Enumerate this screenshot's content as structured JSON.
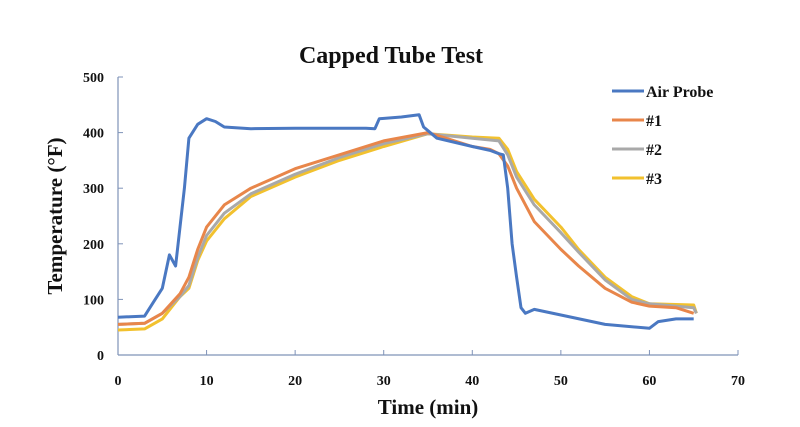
{
  "chart_data": {
    "type": "line",
    "title": "Capped Tube Test",
    "xlabel": "Time (min)",
    "ylabel": "Temperature (°F)",
    "xlim": [
      0,
      70
    ],
    "ylim": [
      0,
      500
    ],
    "xticks": [
      0,
      10,
      20,
      30,
      40,
      50,
      60,
      70
    ],
    "yticks": [
      0,
      100,
      200,
      300,
      400,
      500
    ],
    "grid": false,
    "legend_position": "top-right",
    "series": [
      {
        "name": "Air Probe",
        "color": "#4a78c2",
        "points": [
          [
            0,
            68
          ],
          [
            3,
            70
          ],
          [
            4,
            95
          ],
          [
            5,
            120
          ],
          [
            5.8,
            180
          ],
          [
            6.5,
            160
          ],
          [
            7,
            230
          ],
          [
            7.5,
            300
          ],
          [
            8,
            390
          ],
          [
            9,
            415
          ],
          [
            10,
            425
          ],
          [
            11,
            420
          ],
          [
            12,
            410
          ],
          [
            15,
            407
          ],
          [
            20,
            408
          ],
          [
            25,
            408
          ],
          [
            28,
            408
          ],
          [
            29,
            407
          ],
          [
            29.5,
            425
          ],
          [
            32,
            428
          ],
          [
            34,
            432
          ],
          [
            34.5,
            410
          ],
          [
            36,
            390
          ],
          [
            40,
            375
          ],
          [
            42,
            368
          ],
          [
            43,
            362
          ],
          [
            43.5,
            360
          ],
          [
            44,
            300
          ],
          [
            44.5,
            200
          ],
          [
            45,
            140
          ],
          [
            45.5,
            85
          ],
          [
            46,
            75
          ],
          [
            47,
            82
          ],
          [
            50,
            72
          ],
          [
            55,
            55
          ],
          [
            60,
            48
          ],
          [
            61,
            60
          ],
          [
            63,
            65
          ],
          [
            65,
            65
          ]
        ]
      },
      {
        "name": "#1",
        "color": "#e8864a",
        "points": [
          [
            0,
            55
          ],
          [
            3,
            57
          ],
          [
            5,
            75
          ],
          [
            7,
            110
          ],
          [
            8,
            140
          ],
          [
            9,
            190
          ],
          [
            10,
            230
          ],
          [
            12,
            270
          ],
          [
            15,
            300
          ],
          [
            20,
            335
          ],
          [
            25,
            360
          ],
          [
            30,
            385
          ],
          [
            35,
            400
          ],
          [
            38,
            385
          ],
          [
            40,
            375
          ],
          [
            42,
            370
          ],
          [
            43,
            362
          ],
          [
            44,
            340
          ],
          [
            45,
            300
          ],
          [
            47,
            240
          ],
          [
            50,
            190
          ],
          [
            52,
            160
          ],
          [
            55,
            120
          ],
          [
            58,
            95
          ],
          [
            60,
            88
          ],
          [
            63,
            85
          ],
          [
            65,
            75
          ]
        ]
      },
      {
        "name": "#2",
        "color": "#a9a9a9",
        "points": [
          [
            0,
            55
          ],
          [
            3,
            57
          ],
          [
            5,
            75
          ],
          [
            7,
            105
          ],
          [
            8,
            125
          ],
          [
            9,
            175
          ],
          [
            10,
            215
          ],
          [
            12,
            255
          ],
          [
            15,
            290
          ],
          [
            20,
            325
          ],
          [
            25,
            355
          ],
          [
            30,
            380
          ],
          [
            35,
            398
          ],
          [
            40,
            390
          ],
          [
            43,
            385
          ],
          [
            44,
            360
          ],
          [
            45,
            320
          ],
          [
            47,
            270
          ],
          [
            50,
            220
          ],
          [
            52,
            185
          ],
          [
            55,
            135
          ],
          [
            58,
            100
          ],
          [
            60,
            92
          ],
          [
            65,
            85
          ],
          [
            65.3,
            75
          ]
        ]
      },
      {
        "name": "#3",
        "color": "#f2c12e",
        "points": [
          [
            0,
            45
          ],
          [
            3,
            47
          ],
          [
            5,
            65
          ],
          [
            7,
            105
          ],
          [
            8,
            120
          ],
          [
            9,
            170
          ],
          [
            10,
            205
          ],
          [
            12,
            245
          ],
          [
            15,
            285
          ],
          [
            20,
            320
          ],
          [
            25,
            350
          ],
          [
            30,
            375
          ],
          [
            35,
            398
          ],
          [
            40,
            392
          ],
          [
            43,
            390
          ],
          [
            44,
            370
          ],
          [
            45,
            330
          ],
          [
            47,
            280
          ],
          [
            50,
            230
          ],
          [
            52,
            190
          ],
          [
            55,
            140
          ],
          [
            58,
            105
          ],
          [
            60,
            92
          ],
          [
            65,
            90
          ],
          [
            65.3,
            75
          ]
        ]
      }
    ]
  }
}
